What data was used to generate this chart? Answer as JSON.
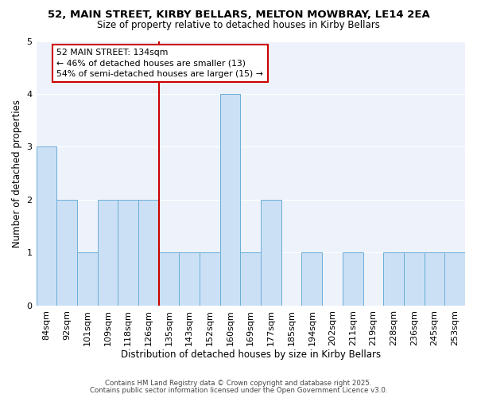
{
  "title1": "52, MAIN STREET, KIRBY BELLARS, MELTON MOWBRAY, LE14 2EA",
  "title2": "Size of property relative to detached houses in Kirby Bellars",
  "xlabel": "Distribution of detached houses by size in Kirby Bellars",
  "ylabel": "Number of detached properties",
  "categories": [
    "84sqm",
    "92sqm",
    "101sqm",
    "109sqm",
    "118sqm",
    "126sqm",
    "135sqm",
    "143sqm",
    "152sqm",
    "160sqm",
    "169sqm",
    "177sqm",
    "185sqm",
    "194sqm",
    "202sqm",
    "211sqm",
    "219sqm",
    "228sqm",
    "236sqm",
    "245sqm",
    "253sqm"
  ],
  "values": [
    3,
    2,
    1,
    2,
    2,
    2,
    1,
    1,
    1,
    4,
    1,
    2,
    0,
    1,
    0,
    1,
    0,
    1,
    1,
    1,
    1
  ],
  "bar_color": "#cce0f5",
  "bar_edge_color": "#6aaed6",
  "highlight_line_color": "#cc0000",
  "highlight_line_index": 6,
  "annotation_text": "52 MAIN STREET: 134sqm\n← 46% of detached houses are smaller (13)\n54% of semi-detached houses are larger (15) →",
  "annotation_box_facecolor": "#ffffff",
  "annotation_box_edgecolor": "#cc0000",
  "ylim": [
    0,
    5
  ],
  "yticks": [
    0,
    1,
    2,
    3,
    4,
    5
  ],
  "footer1": "Contains HM Land Registry data © Crown copyright and database right 2025.",
  "footer2": "Contains public sector information licensed under the Open Government Licence v3.0.",
  "fig_facecolor": "#ffffff",
  "plot_facecolor": "#eef3fb",
  "grid_color": "#ffffff",
  "title1_fontsize": 9.5,
  "title2_fontsize": 8.5,
  "xlabel_fontsize": 8.5,
  "ylabel_fontsize": 8.5,
  "tick_fontsize": 8.0,
  "annotation_fontsize": 7.8,
  "footer_fontsize": 6.2
}
